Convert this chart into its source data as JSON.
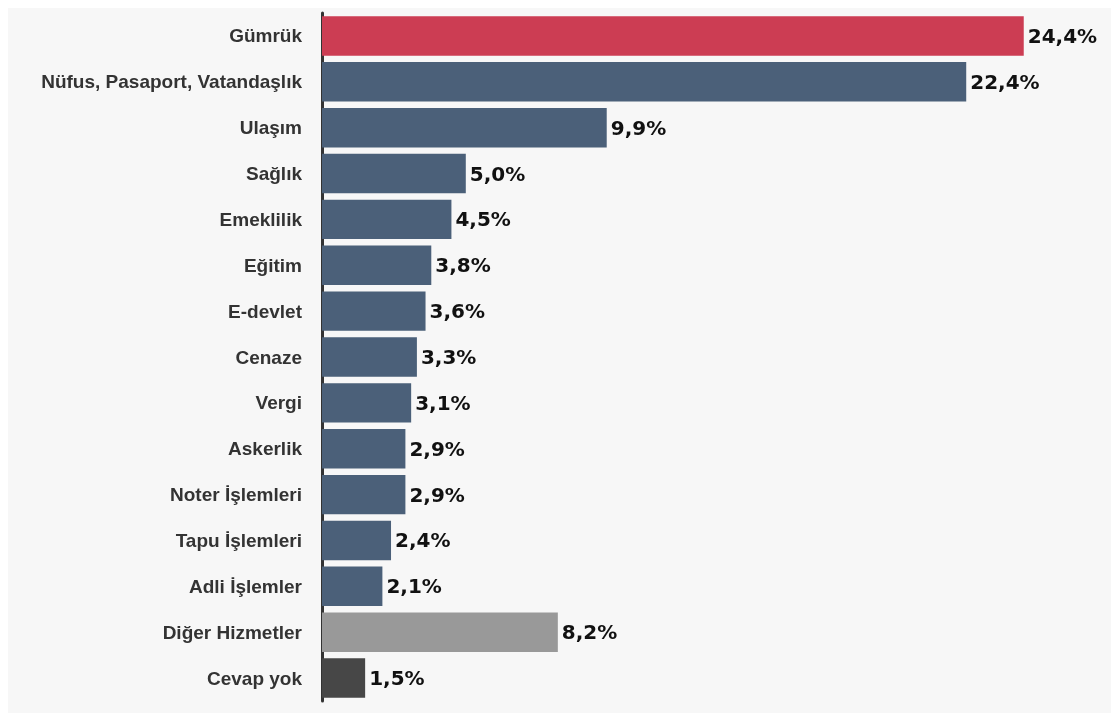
{
  "chart_data": {
    "type": "bar",
    "orientation": "horizontal",
    "categories": [
      "Gümrük",
      "Nüfus, Pasaport, Vatandaşlık",
      "Ulaşım",
      "Sağlık",
      "Emeklilik",
      "Eğitim",
      "E-devlet",
      "Cenaze",
      "Vergi",
      "Askerlik",
      "Noter İşlemleri",
      "Tapu İşlemleri",
      "Adli İşlemler",
      "Diğer Hizmetler",
      "Cevap yok"
    ],
    "values": [
      24.4,
      22.4,
      9.9,
      5.0,
      4.5,
      3.8,
      3.6,
      3.3,
      3.1,
      2.9,
      2.9,
      2.4,
      2.1,
      8.2,
      1.5
    ],
    "colors": [
      "#cc3d53",
      "#4b6079",
      "#4b6079",
      "#4b6079",
      "#4b6079",
      "#4b6079",
      "#4b6079",
      "#4b6079",
      "#4b6079",
      "#4b6079",
      "#4b6079",
      "#4b6079",
      "#4b6079",
      "#999999",
      "#474747"
    ],
    "value_labels": [
      "24,4%",
      "22,4%",
      "9,9%",
      "5,0%",
      "4,5%",
      "3,8%",
      "3,6%",
      "3,3%",
      "3,1%",
      "2,9%",
      "2,9%",
      "2,4%",
      "2,1%",
      "8,2%",
      "1,5%"
    ],
    "grid": false
  }
}
